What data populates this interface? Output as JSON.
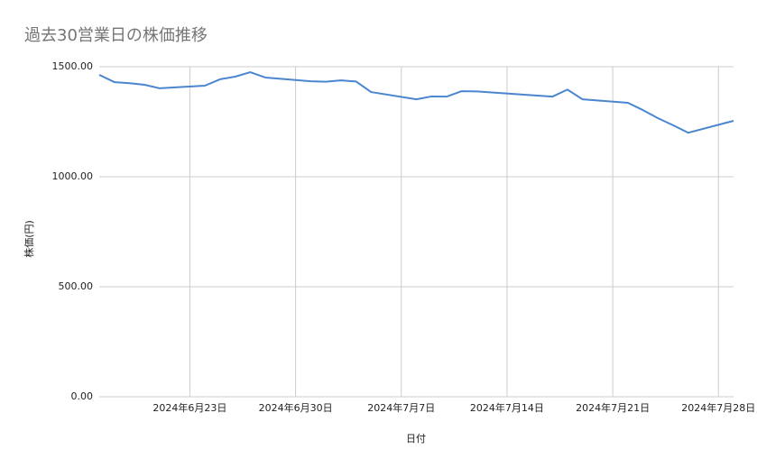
{
  "chart_data": {
    "type": "line",
    "title": "過去30営業日の株価推移",
    "x_label": "日付",
    "y_label": "株価(円)",
    "x": [
      "2024-06-17",
      "2024-06-18",
      "2024-06-19",
      "2024-06-20",
      "2024-06-21",
      "2024-06-24",
      "2024-06-25",
      "2024-06-26",
      "2024-06-27",
      "2024-06-28",
      "2024-07-01",
      "2024-07-02",
      "2024-07-03",
      "2024-07-04",
      "2024-07-05",
      "2024-07-08",
      "2024-07-09",
      "2024-07-10",
      "2024-07-11",
      "2024-07-12",
      "2024-07-16",
      "2024-07-17",
      "2024-07-18",
      "2024-07-19",
      "2024-07-22",
      "2024-07-23",
      "2024-07-24",
      "2024-07-25",
      "2024-07-26",
      "2024-07-29"
    ],
    "series": [
      {
        "name": "株価",
        "color": "#4a86cf",
        "values": [
          1463,
          1430,
          1425,
          1418,
          1402,
          1414,
          1443,
          1455,
          1475,
          1451,
          1434,
          1432,
          1438,
          1433,
          1385,
          1352,
          1365,
          1364,
          1389,
          1388,
          1369,
          1364,
          1396,
          1352,
          1336,
          1303,
          1266,
          1234,
          1200,
          1254
        ]
      }
    ],
    "xlim": [
      "2024-06-17",
      "2024-07-29"
    ],
    "xticks": [
      {
        "value": "2024-06-23",
        "label": "2024年6月23日"
      },
      {
        "value": "2024-06-30",
        "label": "2024年6月30日"
      },
      {
        "value": "2024-07-07",
        "label": "2024年7月7日"
      },
      {
        "value": "2024-07-14",
        "label": "2024年7月14日"
      },
      {
        "value": "2024-07-21",
        "label": "2024年7月21日"
      },
      {
        "value": "2024-07-28",
        "label": "2024年7月28日"
      }
    ],
    "ylim": [
      0,
      1500
    ],
    "yticks": [
      {
        "value": 0,
        "label": "0.00"
      },
      {
        "value": 500,
        "label": "500.00"
      },
      {
        "value": 1000,
        "label": "1000.00"
      },
      {
        "value": 1500,
        "label": "1500.00"
      }
    ],
    "grid": true
  }
}
